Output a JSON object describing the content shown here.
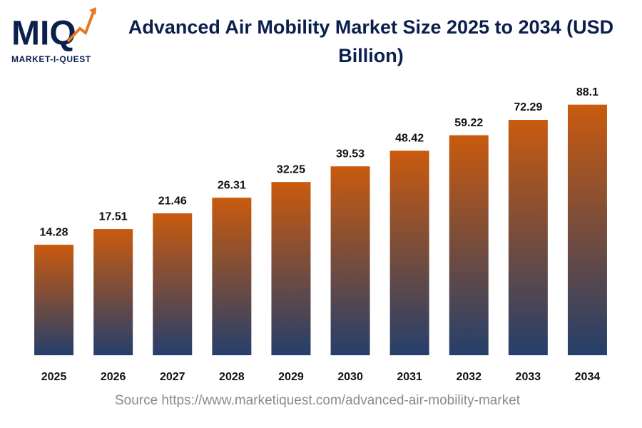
{
  "logo": {
    "mark": "MIQ",
    "name": "MARKET-I-QUEST"
  },
  "chart_data": {
    "type": "bar",
    "title": "Advanced Air Mobility Market Size 2025 to 2034 (USD Billion)",
    "categories": [
      "2025",
      "2026",
      "2027",
      "2028",
      "2029",
      "2030",
      "2031",
      "2032",
      "2033",
      "2034"
    ],
    "values": [
      14.28,
      17.51,
      21.46,
      26.31,
      32.25,
      39.53,
      48.42,
      59.22,
      72.29,
      88.1
    ],
    "color_top": "#c95a0e",
    "color_bottom": "#253f6b",
    "log_scale": true,
    "ylim": [
      3.4,
      100
    ],
    "source": "Source https://www.marketiquest.com/advanced-air-mobility-market"
  }
}
